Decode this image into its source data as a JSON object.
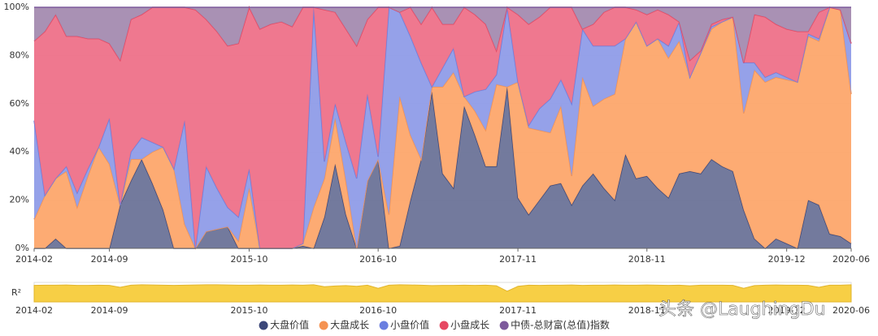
{
  "chart_data": {
    "type": "stacked_area_percent",
    "categories": [
      "2014-02",
      null,
      null,
      null,
      null,
      null,
      null,
      "2014-09",
      null,
      null,
      null,
      null,
      null,
      null,
      null,
      null,
      null,
      null,
      null,
      null,
      "2015-10",
      null,
      null,
      null,
      null,
      null,
      null,
      null,
      null,
      null,
      null,
      null,
      "2016-10",
      null,
      null,
      null,
      null,
      null,
      null,
      null,
      null,
      null,
      null,
      null,
      null,
      "2017-11",
      null,
      null,
      null,
      null,
      null,
      null,
      null,
      null,
      null,
      null,
      null,
      "2018-11",
      null,
      null,
      null,
      null,
      null,
      null,
      null,
      null,
      null,
      null,
      null,
      null,
      "2019-12",
      null,
      null,
      null,
      null,
      null,
      "2020-06"
    ],
    "ylim": [
      0,
      100
    ],
    "yticks": [
      {
        "value": 0,
        "label": "0%"
      },
      {
        "value": 20,
        "label": "20%"
      },
      {
        "value": 40,
        "label": "40%"
      },
      {
        "value": 60,
        "label": "60%"
      },
      {
        "value": 80,
        "label": "80%"
      },
      {
        "value": 100,
        "label": "100%"
      }
    ],
    "grid": true,
    "series": [
      {
        "name": "大盘价值",
        "color": "#3b4779",
        "fill": "#6b7398",
        "values": [
          0,
          0,
          4,
          0,
          0,
          0,
          0,
          0,
          18,
          28,
          37,
          27,
          16,
          0,
          0,
          0,
          7,
          8,
          9,
          0,
          0,
          0,
          0,
          0,
          0,
          1,
          0,
          13,
          35,
          14,
          0,
          28,
          37,
          0,
          1,
          20,
          37,
          65,
          31,
          25,
          59,
          47,
          34,
          34,
          67,
          21,
          14,
          20,
          26,
          27,
          18,
          26,
          31,
          25,
          20,
          39,
          29,
          30,
          25,
          21,
          31,
          32,
          31,
          37,
          34,
          32,
          16,
          4,
          0,
          4,
          2,
          0,
          20,
          18,
          6,
          5,
          2
        ]
      },
      {
        "name": "大盘成长",
        "color": "#f59352",
        "fill": "#fda66b",
        "values": [
          12,
          22,
          25,
          32,
          17,
          30,
          42,
          35,
          0,
          9,
          0,
          13,
          26,
          33,
          10,
          0,
          0,
          0,
          0,
          3,
          25,
          0,
          0,
          0,
          0,
          1,
          17,
          16,
          19,
          14,
          0,
          0,
          0,
          14,
          62,
          27,
          0,
          2,
          36,
          48,
          4,
          10,
          15,
          34,
          0,
          48,
          36,
          29,
          22,
          32,
          12,
          45,
          28,
          37,
          44,
          48,
          65,
          54,
          62,
          58,
          55,
          39,
          50,
          54,
          60,
          64,
          40,
          70,
          69,
          67,
          68,
          69,
          68,
          68,
          94,
          94,
          62
        ]
      },
      {
        "name": "小盘价值",
        "color": "#6a7fe0",
        "fill": "#8f9ce8",
        "values": [
          41,
          0,
          0,
          2,
          6,
          3,
          0,
          19,
          0,
          3,
          9,
          4,
          0,
          0,
          43,
          0,
          27,
          17,
          8,
          10,
          8,
          0,
          0,
          0,
          0,
          0,
          83,
          7,
          6,
          16,
          29,
          36,
          1,
          86,
          35,
          41,
          40,
          0,
          8,
          10,
          0,
          8,
          17,
          4,
          33,
          0,
          1,
          9,
          14,
          11,
          30,
          20,
          25,
          22,
          20,
          0,
          0,
          0,
          0,
          5,
          8,
          0,
          0,
          1,
          0,
          0,
          21,
          3,
          2,
          2,
          1,
          0,
          1,
          1,
          0,
          0,
          21
        ]
      },
      {
        "name": "小盘成长",
        "color": "#e64862",
        "fill": "#ee7189",
        "values": [
          33,
          68,
          68,
          54,
          65,
          54,
          45,
          31,
          60,
          55,
          51,
          56,
          58,
          67,
          47,
          99,
          61,
          65,
          67,
          72,
          67,
          91,
          93,
          94,
          92,
          98,
          0,
          63,
          38,
          47,
          55,
          31,
          62,
          0,
          0,
          12,
          16,
          33,
          18,
          10,
          37,
          32,
          27,
          10,
          0,
          28,
          42,
          38,
          38,
          30,
          40,
          0,
          9,
          14,
          16,
          13,
          5,
          13,
          12,
          13,
          0,
          7,
          1,
          1,
          1,
          0,
          0,
          20,
          25,
          20,
          20,
          21,
          1,
          11,
          0,
          0,
          0
        ]
      },
      {
        "name": "中债-总财富(总值)指数",
        "color": "#7d5a9c",
        "fill": "#a48bb0",
        "values": [
          14,
          10,
          3,
          12,
          12,
          13,
          13,
          15,
          22,
          5,
          3,
          0,
          0,
          0,
          0,
          1,
          5,
          10,
          16,
          15,
          0,
          9,
          7,
          6,
          8,
          0,
          0,
          1,
          2,
          9,
          16,
          5,
          0,
          0,
          2,
          0,
          7,
          0,
          7,
          7,
          0,
          3,
          7,
          18,
          0,
          3,
          7,
          4,
          0,
          0,
          0,
          9,
          7,
          2,
          0,
          0,
          1,
          3,
          1,
          3,
          6,
          22,
          18,
          7,
          5,
          4,
          23,
          3,
          4,
          7,
          9,
          10,
          10,
          2,
          0,
          1,
          15
        ]
      }
    ],
    "r2": {
      "label": "R²",
      "color": "#f7cf45",
      "ylim": [
        0,
        1
      ],
      "values": [
        0.85,
        0.86,
        0.86,
        0.87,
        0.85,
        0.85,
        0.86,
        0.85,
        0.75,
        0.86,
        0.88,
        0.87,
        0.86,
        0.85,
        0.86,
        0.87,
        0.88,
        0.88,
        0.87,
        0.86,
        0.86,
        0.87,
        0.86,
        0.86,
        0.87,
        0.86,
        0.88,
        0.78,
        0.82,
        0.84,
        0.8,
        0.86,
        0.7,
        0.86,
        0.88,
        0.87,
        0.86,
        0.84,
        0.85,
        0.85,
        0.86,
        0.85,
        0.86,
        0.83,
        0.55,
        0.8,
        0.86,
        0.85,
        0.86,
        0.86,
        0.87,
        0.85,
        0.86,
        0.86,
        0.87,
        0.86,
        0.86,
        0.87,
        0.86,
        0.85,
        0.86,
        0.83,
        0.86,
        0.86,
        0.86,
        0.85,
        0.7,
        0.84,
        0.86,
        0.87,
        0.86,
        0.86,
        0.85,
        0.75,
        0.86,
        0.86,
        0.88
      ]
    },
    "watermark": "头条 @LaughingDu"
  }
}
